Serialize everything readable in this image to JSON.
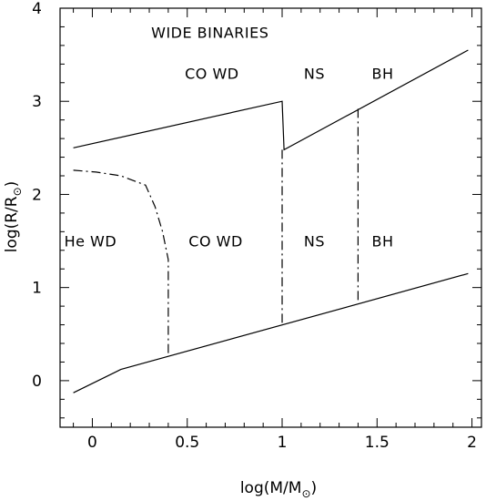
{
  "chart_data": {
    "type": "line",
    "xlabel": {
      "prefix": "log(M/M",
      "suffix": ")",
      "symbol": "⊙"
    },
    "ylabel": {
      "prefix": "log(R/R",
      "suffix": ")",
      "symbol": "⊙"
    },
    "xlim": [
      -0.17,
      2.05
    ],
    "ylim": [
      -0.5,
      4.0
    ],
    "xticks": [
      0,
      0.5,
      1,
      1.5,
      2
    ],
    "xtick_labels": [
      "0",
      "0.5",
      "1",
      "1.5",
      "2"
    ],
    "yticks": [
      0,
      1,
      2,
      3,
      4
    ],
    "ytick_labels": [
      "0",
      "1",
      "2",
      "3",
      "4"
    ],
    "grid": false,
    "series": [
      {
        "style": "solid",
        "points": [
          [
            -0.1,
            2.5
          ],
          [
            1.0,
            3.0
          ],
          [
            1.01,
            2.48
          ],
          [
            1.98,
            3.55
          ]
        ]
      },
      {
        "style": "solid",
        "points": [
          [
            -0.1,
            -0.13
          ],
          [
            0.15,
            0.12
          ],
          [
            1.98,
            1.15
          ]
        ]
      },
      {
        "style": "dashdot",
        "points": [
          [
            -0.1,
            2.26
          ],
          [
            0.02,
            2.24
          ],
          [
            0.15,
            2.2
          ],
          [
            0.28,
            2.1
          ],
          [
            0.33,
            1.87
          ],
          [
            0.37,
            1.6
          ],
          [
            0.4,
            1.3
          ],
          [
            0.4,
            0.28
          ]
        ]
      },
      {
        "style": "dashdot",
        "points": [
          [
            1.0,
            2.48
          ],
          [
            1.0,
            0.6
          ]
        ]
      },
      {
        "style": "dashdot",
        "points": [
          [
            1.4,
            2.92
          ],
          [
            1.4,
            0.83
          ]
        ]
      }
    ],
    "annotations": [
      {
        "text": "WIDE BINARIES",
        "x": 0.62,
        "y": 3.68
      },
      {
        "text": "CO WD",
        "x": 0.63,
        "y": 3.24
      },
      {
        "text": "NS",
        "x": 1.17,
        "y": 3.24
      },
      {
        "text": "BH",
        "x": 1.53,
        "y": 3.24
      },
      {
        "text": "He WD",
        "x": -0.01,
        "y": 1.44
      },
      {
        "text": "CO WD",
        "x": 0.65,
        "y": 1.44
      },
      {
        "text": "NS",
        "x": 1.17,
        "y": 1.44
      },
      {
        "text": "BH",
        "x": 1.53,
        "y": 1.44
      }
    ]
  }
}
